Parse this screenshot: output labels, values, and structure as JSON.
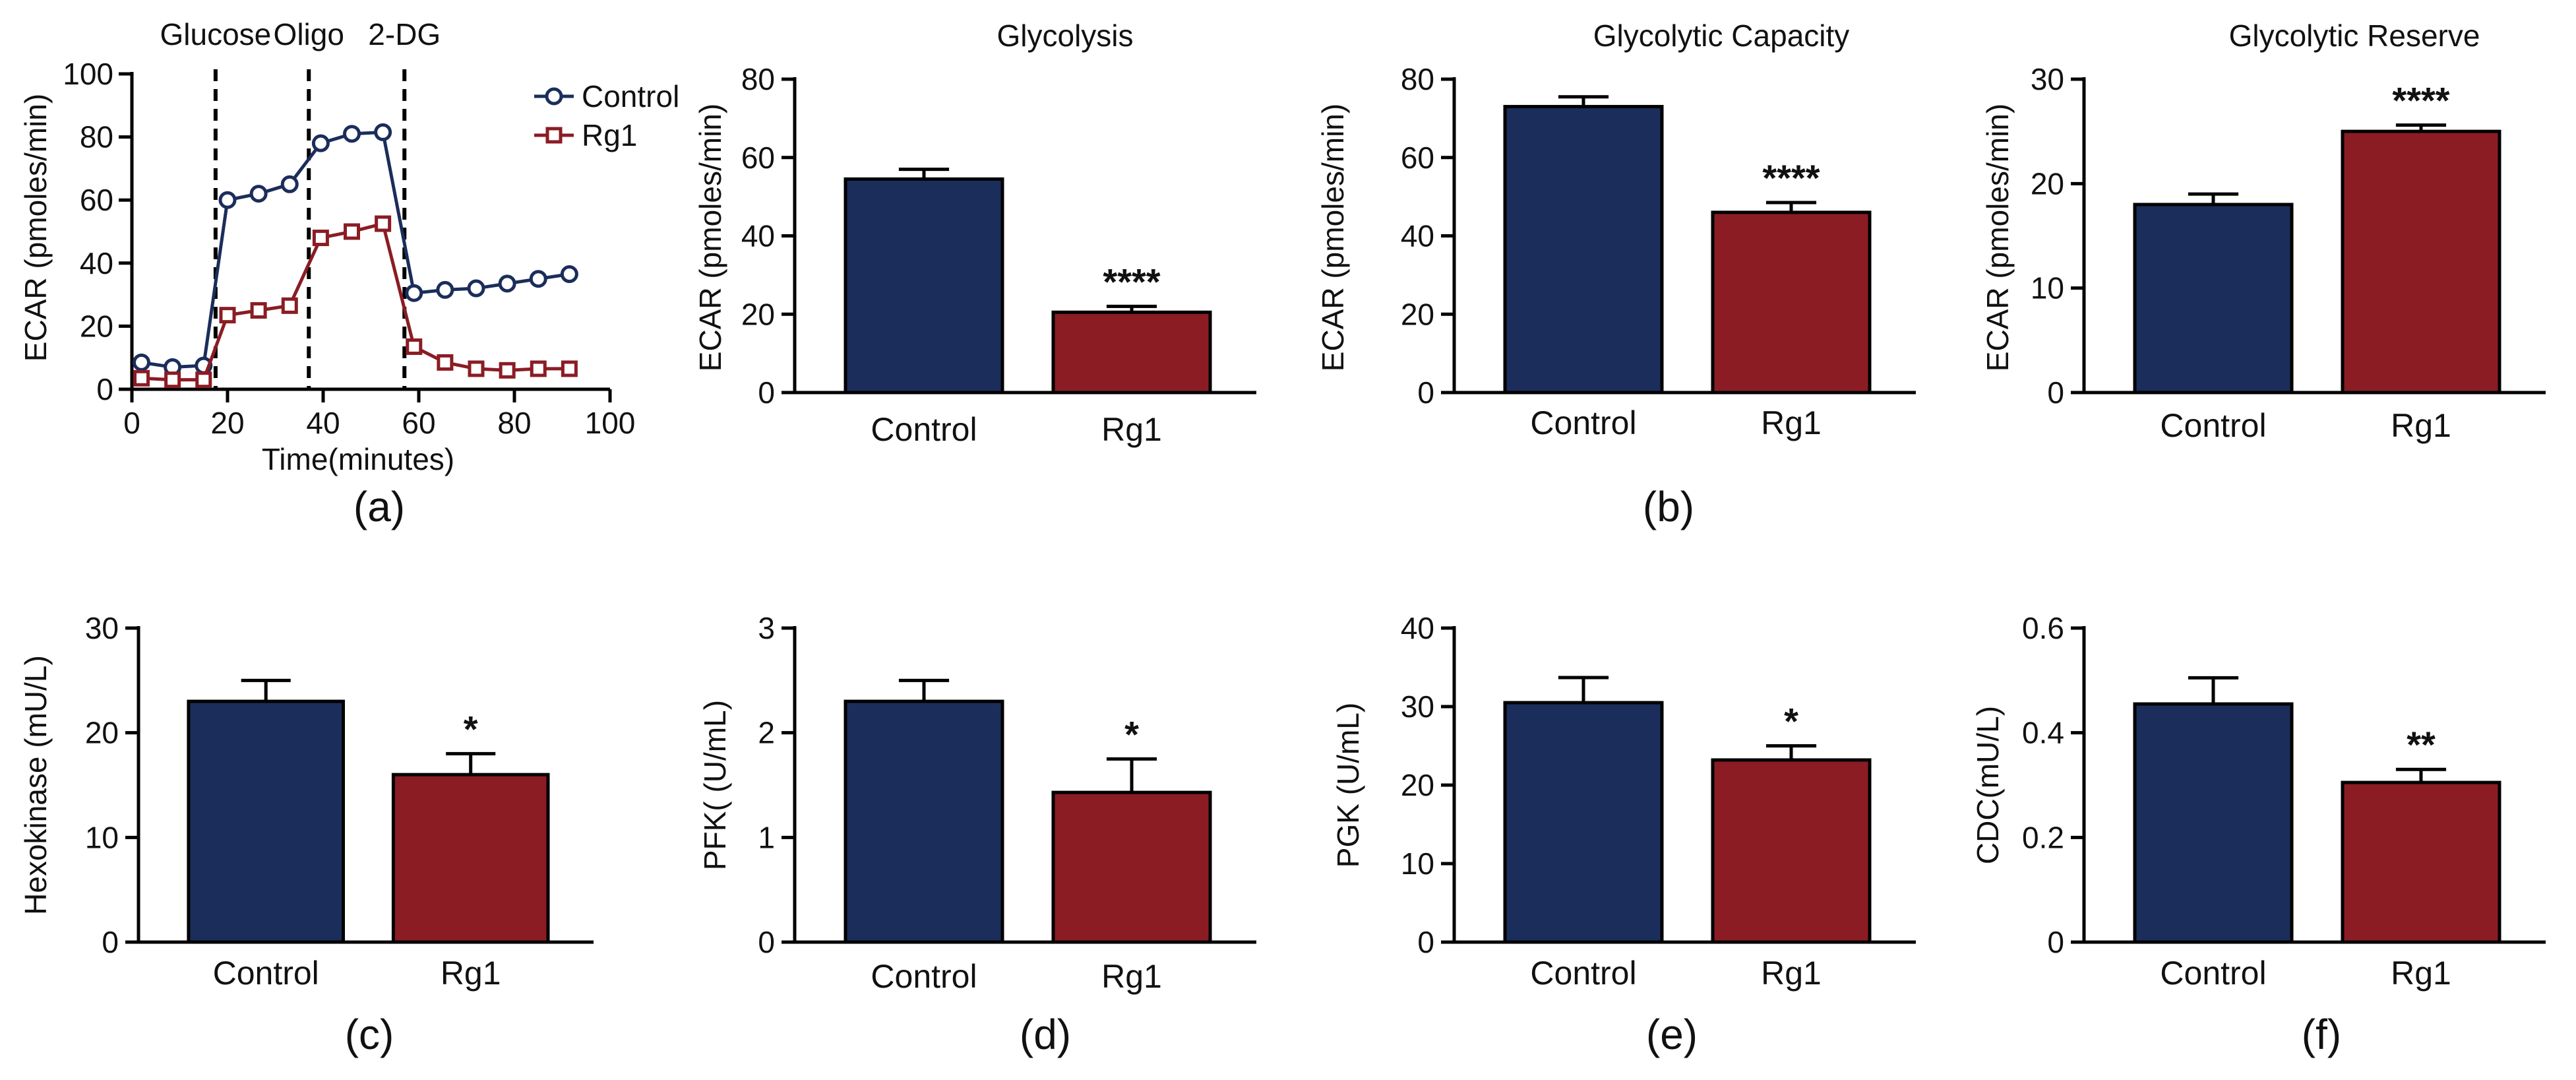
{
  "colors": {
    "control": "#1b2d5b",
    "rg1": "#8b1c24",
    "axis": "#000000"
  },
  "panel_labels": [
    "(a)",
    "(b)",
    "(c)",
    "(d)",
    "(e)",
    "(f)"
  ],
  "chart_data": [
    {
      "id": "a",
      "type": "line",
      "title": "",
      "xlabel": "Time(minutes)",
      "ylabel": "ECAR (pmoles/min)",
      "xlim": [
        0,
        100
      ],
      "ylim": [
        0,
        100
      ],
      "xticks": [
        0,
        20,
        40,
        60,
        80,
        100
      ],
      "yticks": [
        0,
        20,
        40,
        60,
        80,
        100
      ],
      "legend_position": "top-right",
      "treatments": [
        {
          "label": "Glucose",
          "x": 17.5
        },
        {
          "label": "Oligo",
          "x": 37
        },
        {
          "label": "2-DG",
          "x": 57
        }
      ],
      "series": [
        {
          "name": "Control",
          "marker": "circle",
          "x": [
            2,
            8.5,
            15,
            20,
            26.5,
            33,
            39.5,
            46,
            52.5,
            59,
            65.5,
            72,
            78.5,
            85,
            91.5
          ],
          "y": [
            8.5,
            7,
            7.5,
            60,
            62,
            65,
            78,
            81,
            81.5,
            30.5,
            31.5,
            32,
            33.5,
            35,
            36.5
          ]
        },
        {
          "name": "Rg1",
          "marker": "square",
          "x": [
            2,
            8.5,
            15,
            20,
            26.5,
            33,
            39.5,
            46,
            52.5,
            59,
            65.5,
            72,
            78.5,
            85,
            91.5
          ],
          "y": [
            3.5,
            3,
            3,
            23.5,
            25,
            26.5,
            48,
            50,
            52.5,
            13.5,
            8.5,
            6.5,
            6,
            6.5,
            6.5
          ]
        }
      ]
    },
    {
      "id": "b1",
      "type": "bar",
      "title": "Glycolysis",
      "ylabel": "ECAR (pmoles/min)",
      "categories": [
        "Control",
        "Rg1"
      ],
      "values": [
        54.5,
        20.5
      ],
      "errors": [
        2.5,
        1.5
      ],
      "significance": [
        "",
        "****"
      ],
      "ylim": [
        0,
        80
      ],
      "yticks": [
        0,
        20,
        40,
        60,
        80
      ]
    },
    {
      "id": "b2",
      "type": "bar",
      "title": "Glycolytic Capacity",
      "ylabel": "ECAR (pmoles/min)",
      "categories": [
        "Control",
        "Rg1"
      ],
      "values": [
        73,
        46
      ],
      "errors": [
        2.5,
        2.5
      ],
      "significance": [
        "",
        "****"
      ],
      "ylim": [
        0,
        80
      ],
      "yticks": [
        0,
        20,
        40,
        60,
        80
      ]
    },
    {
      "id": "b3",
      "type": "bar",
      "title": "Glycolytic Reserve",
      "ylabel": "ECAR (pmoles/min)",
      "categories": [
        "Control",
        "Rg1"
      ],
      "values": [
        18,
        25
      ],
      "errors": [
        1,
        0.6
      ],
      "significance": [
        "",
        "****"
      ],
      "ylim": [
        0,
        30
      ],
      "yticks": [
        0,
        10,
        20,
        30
      ]
    },
    {
      "id": "c",
      "type": "bar",
      "title": "",
      "ylabel": "Hexokinase (mU/L)",
      "categories": [
        "Control",
        "Rg1"
      ],
      "values": [
        23,
        16
      ],
      "errors": [
        2,
        2
      ],
      "significance": [
        "",
        "*"
      ],
      "ylim": [
        0,
        30
      ],
      "yticks": [
        0,
        10,
        20,
        30
      ]
    },
    {
      "id": "d",
      "type": "bar",
      "title": "",
      "ylabel": "PFK( (U/mL)",
      "categories": [
        "Control",
        "Rg1"
      ],
      "values": [
        2.3,
        1.43
      ],
      "errors": [
        0.2,
        0.32
      ],
      "significance": [
        "",
        "*"
      ],
      "ylim": [
        0,
        3
      ],
      "yticks": [
        0,
        1,
        2,
        3
      ]
    },
    {
      "id": "e",
      "type": "bar",
      "title": "",
      "ylabel": "PGK (U/mL)",
      "categories": [
        "Control",
        "Rg1"
      ],
      "values": [
        30.5,
        23.2
      ],
      "errors": [
        3.2,
        1.8
      ],
      "significance": [
        "",
        "*"
      ],
      "ylim": [
        0,
        40
      ],
      "yticks": [
        0,
        10,
        20,
        30,
        40
      ]
    },
    {
      "id": "f",
      "type": "bar",
      "title": "",
      "ylabel": "CDC(mU/L)",
      "categories": [
        "Control",
        "Rg1"
      ],
      "values": [
        0.455,
        0.305
      ],
      "errors": [
        0.05,
        0.025
      ],
      "significance": [
        "",
        "**"
      ],
      "ylim": [
        0,
        0.6
      ],
      "yticks": [
        "0",
        "0.2",
        "0.4",
        "0.6"
      ]
    }
  ]
}
